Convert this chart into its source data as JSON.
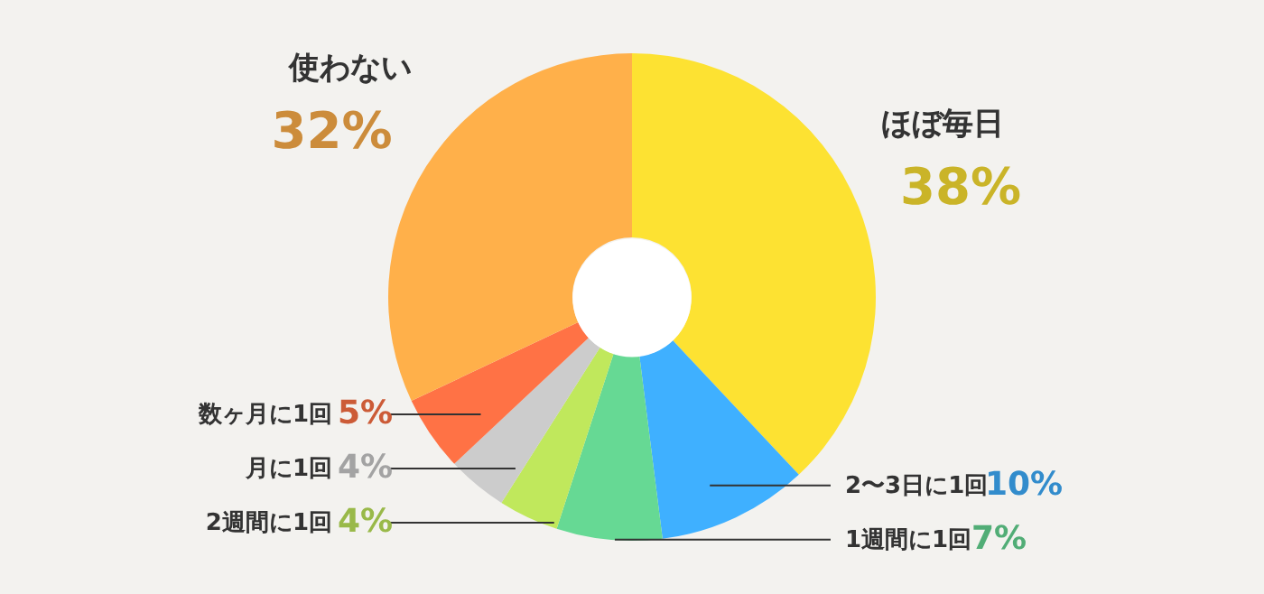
{
  "chart_data": {
    "type": "donut",
    "categories": [
      "ほぼ毎日",
      "2〜3日に1回",
      "1週間に1回",
      "2週間に1回",
      "月に1回",
      "数ヶ月に1回",
      "使わない"
    ],
    "values": [
      38,
      10,
      7,
      4,
      4,
      5,
      32
    ],
    "colors": [
      "#fde232",
      "#3fb0ff",
      "#66d994",
      "#c0e85c",
      "#cccccc",
      "#ff7245",
      "#ffb04a"
    ],
    "value_labels": [
      "38%",
      "10%",
      "7%",
      "4%",
      "4%",
      "5%",
      "32%"
    ]
  }
}
